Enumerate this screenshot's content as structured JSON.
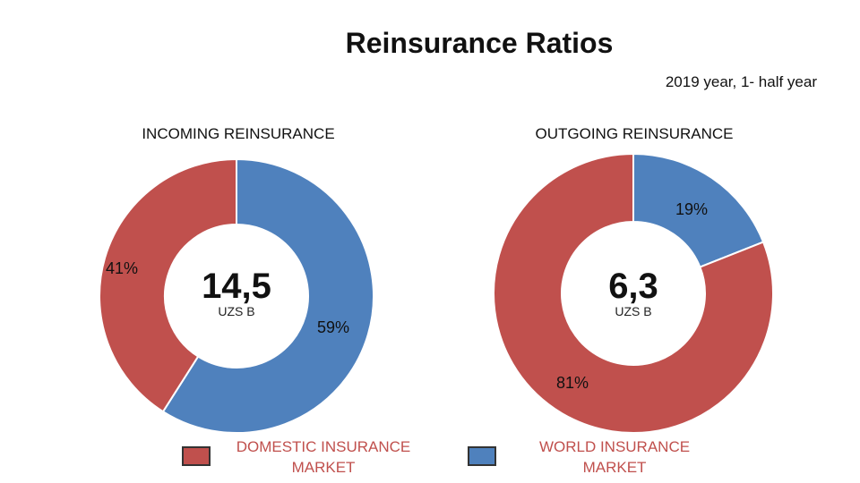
{
  "title": "Reinsurance Ratios",
  "subtitle": "2019 year, 1- half year",
  "colors": {
    "domestic": "#C0504D",
    "world": "#4F81BD",
    "legend_text": "#C0504D"
  },
  "chart_data": [
    {
      "type": "pie",
      "donut": true,
      "title": "INCOMING REINSURANCE",
      "center_value": "14,5",
      "center_unit": "UZS B",
      "slices": [
        {
          "label": "WORLD INSURANCE MARKET",
          "value": 59,
          "display": "59%"
        },
        {
          "label": "DOMESTIC INSURANCE MARKET",
          "value": 41,
          "display": "41%"
        }
      ]
    },
    {
      "type": "pie",
      "donut": true,
      "title": "OUTGOING REINSURANCE",
      "center_value": "6,3",
      "center_unit": "UZS B",
      "slices": [
        {
          "label": "WORLD INSURANCE MARKET",
          "value": 19,
          "display": "19%"
        },
        {
          "label": "DOMESTIC INSURANCE MARKET",
          "value": 81,
          "display": "81%"
        }
      ]
    }
  ],
  "legend": [
    {
      "label": "DOMESTIC INSURANCE MARKET",
      "line1": "DOMESTIC INSURANCE",
      "line2": "MARKET",
      "color_key": "domestic"
    },
    {
      "label": "WORLD INSURANCE MARKET",
      "line1": "WORLD INSURANCE",
      "line2": "MARKET",
      "color_key": "world"
    }
  ]
}
